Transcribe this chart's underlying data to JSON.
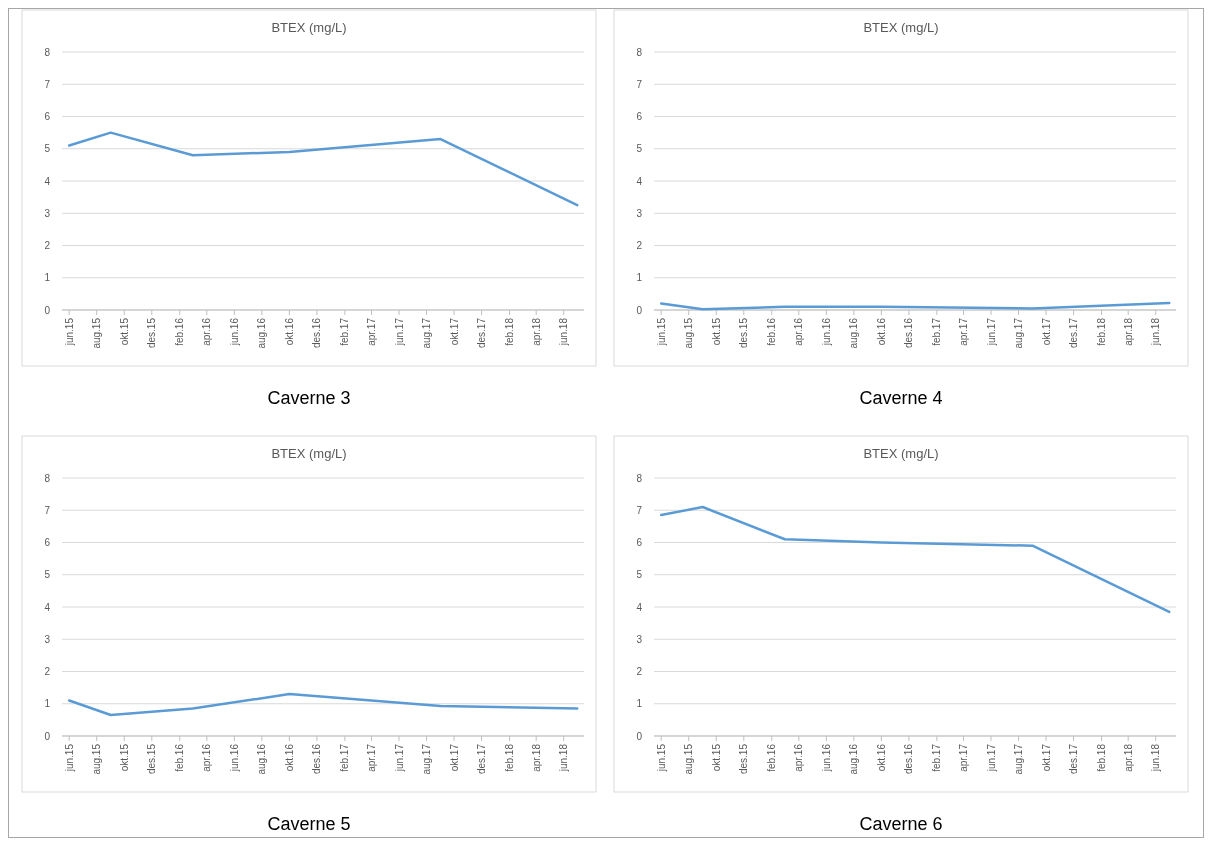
{
  "chart_data": [
    {
      "type": "line",
      "title": "BTEX (mg/L)",
      "annotations": [
        "Caverne 3"
      ],
      "x": [
        "2015-06",
        "2015-09",
        "2016-03",
        "2016-10",
        "2017-09",
        "2018-07"
      ],
      "series": [
        {
          "color": "#5b9bd5",
          "values": [
            5.1,
            5.5,
            4.8,
            4.9,
            5.3,
            3.25
          ]
        }
      ],
      "xlim": [
        "2015-05-16",
        "2018-07-16"
      ],
      "xticks": [
        {
          "value": "2015-06",
          "label": "jun.15"
        },
        {
          "value": "2015-08",
          "label": "aug.15"
        },
        {
          "value": "2015-10",
          "label": "okt.15"
        },
        {
          "value": "2015-12",
          "label": "des.15"
        },
        {
          "value": "2016-02",
          "label": "feb.16"
        },
        {
          "value": "2016-04",
          "label": "apr.16"
        },
        {
          "value": "2016-06",
          "label": "jun.16"
        },
        {
          "value": "2016-08",
          "label": "aug.16"
        },
        {
          "value": "2016-10",
          "label": "okt.16"
        },
        {
          "value": "2016-12",
          "label": "des.16"
        },
        {
          "value": "2017-02",
          "label": "feb.17"
        },
        {
          "value": "2017-04",
          "label": "apr.17"
        },
        {
          "value": "2017-06",
          "label": "jun.17"
        },
        {
          "value": "2017-08",
          "label": "aug.17"
        },
        {
          "value": "2017-10",
          "label": "okt.17"
        },
        {
          "value": "2017-12",
          "label": "des.17"
        },
        {
          "value": "2018-02",
          "label": "feb.18"
        },
        {
          "value": "2018-04",
          "label": "apr.18"
        },
        {
          "value": "2018-06",
          "label": "jun.18"
        }
      ],
      "ylim": [
        0,
        8
      ],
      "yticks": [
        0,
        1,
        2,
        3,
        4,
        5,
        6,
        7,
        8
      ],
      "grid": "y"
    },
    {
      "type": "line",
      "title": "BTEX (mg/L)",
      "annotations": [
        "Caverne 4"
      ],
      "x": [
        "2015-06",
        "2015-09",
        "2016-03",
        "2016-10",
        "2017-09",
        "2018-07"
      ],
      "series": [
        {
          "color": "#5b9bd5",
          "values": [
            0.2,
            0.02,
            0.1,
            0.1,
            0.05,
            0.22
          ]
        }
      ],
      "xlim": [
        "2015-05-16",
        "2018-07-16"
      ],
      "xticks": [
        {
          "value": "2015-06",
          "label": "jun.15"
        },
        {
          "value": "2015-08",
          "label": "aug.15"
        },
        {
          "value": "2015-10",
          "label": "okt.15"
        },
        {
          "value": "2015-12",
          "label": "des.15"
        },
        {
          "value": "2016-02",
          "label": "feb.16"
        },
        {
          "value": "2016-04",
          "label": "apr.16"
        },
        {
          "value": "2016-06",
          "label": "jun.16"
        },
        {
          "value": "2016-08",
          "label": "aug.16"
        },
        {
          "value": "2016-10",
          "label": "okt.16"
        },
        {
          "value": "2016-12",
          "label": "des.16"
        },
        {
          "value": "2017-02",
          "label": "feb.17"
        },
        {
          "value": "2017-04",
          "label": "apr.17"
        },
        {
          "value": "2017-06",
          "label": "jun.17"
        },
        {
          "value": "2017-08",
          "label": "aug.17"
        },
        {
          "value": "2017-10",
          "label": "okt.17"
        },
        {
          "value": "2017-12",
          "label": "des.17"
        },
        {
          "value": "2018-02",
          "label": "feb.18"
        },
        {
          "value": "2018-04",
          "label": "apr.18"
        },
        {
          "value": "2018-06",
          "label": "jun.18"
        }
      ],
      "ylim": [
        0,
        8
      ],
      "yticks": [
        0,
        1,
        2,
        3,
        4,
        5,
        6,
        7,
        8
      ],
      "grid": "y"
    },
    {
      "type": "line",
      "title": "BTEX (mg/L)",
      "annotations": [
        "Caverne 5"
      ],
      "x": [
        "2015-06",
        "2015-09",
        "2016-03",
        "2016-10",
        "2017-09",
        "2018-07"
      ],
      "series": [
        {
          "color": "#5b9bd5",
          "values": [
            1.1,
            0.65,
            0.85,
            1.3,
            0.93,
            0.85
          ]
        }
      ],
      "xlim": [
        "2015-05-16",
        "2018-07-16"
      ],
      "xticks": [
        {
          "value": "2015-06",
          "label": "jun.15"
        },
        {
          "value": "2015-08",
          "label": "aug.15"
        },
        {
          "value": "2015-10",
          "label": "okt.15"
        },
        {
          "value": "2015-12",
          "label": "des.15"
        },
        {
          "value": "2016-02",
          "label": "feb.16"
        },
        {
          "value": "2016-04",
          "label": "apr.16"
        },
        {
          "value": "2016-06",
          "label": "jun.16"
        },
        {
          "value": "2016-08",
          "label": "aug.16"
        },
        {
          "value": "2016-10",
          "label": "okt.16"
        },
        {
          "value": "2016-12",
          "label": "des.16"
        },
        {
          "value": "2017-02",
          "label": "feb.17"
        },
        {
          "value": "2017-04",
          "label": "apr.17"
        },
        {
          "value": "2017-06",
          "label": "jun.17"
        },
        {
          "value": "2017-08",
          "label": "aug.17"
        },
        {
          "value": "2017-10",
          "label": "okt.17"
        },
        {
          "value": "2017-12",
          "label": "des.17"
        },
        {
          "value": "2018-02",
          "label": "feb.18"
        },
        {
          "value": "2018-04",
          "label": "apr.18"
        },
        {
          "value": "2018-06",
          "label": "jun.18"
        }
      ],
      "ylim": [
        0,
        8
      ],
      "yticks": [
        0,
        1,
        2,
        3,
        4,
        5,
        6,
        7,
        8
      ],
      "grid": "y"
    },
    {
      "type": "line",
      "title": "BTEX (mg/L)",
      "annotations": [
        "Caverne 6"
      ],
      "x": [
        "2015-06",
        "2015-09",
        "2016-03",
        "2016-10",
        "2017-09",
        "2018-07"
      ],
      "series": [
        {
          "color": "#5b9bd5",
          "values": [
            6.85,
            7.1,
            6.1,
            6.0,
            5.9,
            3.85
          ]
        }
      ],
      "xlim": [
        "2015-05-16",
        "2018-07-16"
      ],
      "xticks": [
        {
          "value": "2015-06",
          "label": "jun.15"
        },
        {
          "value": "2015-08",
          "label": "aug.15"
        },
        {
          "value": "2015-10",
          "label": "okt.15"
        },
        {
          "value": "2015-12",
          "label": "des.15"
        },
        {
          "value": "2016-02",
          "label": "feb.16"
        },
        {
          "value": "2016-04",
          "label": "apr.16"
        },
        {
          "value": "2016-06",
          "label": "jun.16"
        },
        {
          "value": "2016-08",
          "label": "aug.16"
        },
        {
          "value": "2016-10",
          "label": "okt.16"
        },
        {
          "value": "2016-12",
          "label": "des.16"
        },
        {
          "value": "2017-02",
          "label": "feb.17"
        },
        {
          "value": "2017-04",
          "label": "apr.17"
        },
        {
          "value": "2017-06",
          "label": "jun.17"
        },
        {
          "value": "2017-08",
          "label": "aug.17"
        },
        {
          "value": "2017-10",
          "label": "okt.17"
        },
        {
          "value": "2017-12",
          "label": "des.17"
        },
        {
          "value": "2018-02",
          "label": "feb.18"
        },
        {
          "value": "2018-04",
          "label": "apr.18"
        },
        {
          "value": "2018-06",
          "label": "jun.18"
        }
      ],
      "ylim": [
        0,
        8
      ],
      "yticks": [
        0,
        1,
        2,
        3,
        4,
        5,
        6,
        7,
        8
      ],
      "grid": "y"
    }
  ]
}
